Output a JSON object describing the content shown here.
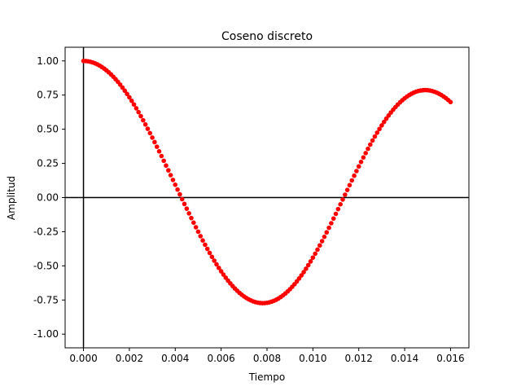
{
  "chart_data": {
    "type": "scatter",
    "title": "Coseno discreto",
    "xlabel": "Tiempo",
    "ylabel": "Amplitud",
    "xlim": [
      -0.0008,
      0.0168
    ],
    "ylim": [
      -1.1,
      1.1
    ],
    "xticks": [
      "0.000",
      "0.002",
      "0.004",
      "0.006",
      "0.008",
      "0.010",
      "0.012",
      "0.014",
      "0.016"
    ],
    "yticks": [
      "-1.00",
      "-0.75",
      "-0.50",
      "-0.25",
      "0.00",
      "0.25",
      "0.50",
      "0.75",
      "1.00"
    ],
    "grid": false,
    "marker_color": "#ff0000",
    "reference_lines": {
      "horizontal_y": 0,
      "vertical_x": 0,
      "color": "#000000"
    },
    "series": [
      {
        "x": [
          0.0,
          0.0001,
          0.0002,
          0.0003,
          0.0004,
          0.0005,
          0.0006,
          0.0007,
          0.0008,
          0.0009,
          0.001,
          0.0011,
          0.0012,
          0.0013,
          0.0014,
          0.0015,
          0.0016,
          0.0017,
          0.0018,
          0.0019,
          0.002,
          0.0021,
          0.0022,
          0.0023,
          0.0024,
          0.0025,
          0.0026,
          0.0027,
          0.0028,
          0.0029,
          0.003,
          0.0031,
          0.0032,
          0.0033,
          0.0034,
          0.0035,
          0.0036,
          0.0037,
          0.0038,
          0.0039,
          0.004,
          0.0041,
          0.0042,
          0.0043,
          0.0044,
          0.0045,
          0.0046,
          0.0047,
          0.0048,
          0.0049,
          0.005,
          0.0051,
          0.0052,
          0.0053,
          0.0054,
          0.0055,
          0.0056,
          0.0057,
          0.0058,
          0.0059,
          0.006,
          0.0061,
          0.0062,
          0.0063,
          0.0064,
          0.0065,
          0.0066,
          0.0067,
          0.0068,
          0.0069,
          0.007,
          0.0071,
          0.0072,
          0.0073,
          0.0074,
          0.0075,
          0.0076,
          0.0077,
          0.0078,
          0.0079,
          0.008,
          0.0081,
          0.0082,
          0.0083,
          0.0084,
          0.0085,
          0.0086,
          0.0087,
          0.0088,
          0.0089,
          0.009,
          0.0091,
          0.0092,
          0.0093,
          0.0094,
          0.0095,
          0.0096,
          0.0097,
          0.0098,
          0.0099,
          0.01,
          0.0101,
          0.0102,
          0.0103,
          0.0104,
          0.0105,
          0.0106,
          0.0107,
          0.0108,
          0.0109,
          0.011,
          0.0111,
          0.0112,
          0.0113,
          0.0114,
          0.0115,
          0.0116,
          0.0117,
          0.0118,
          0.0119,
          0.012,
          0.0121,
          0.0122,
          0.0123,
          0.0124,
          0.0125,
          0.0126,
          0.0127,
          0.0128,
          0.0129,
          0.013,
          0.0131,
          0.0132,
          0.0133,
          0.0134,
          0.0135,
          0.0136,
          0.0137,
          0.0138,
          0.0139,
          0.014,
          0.0141,
          0.0142,
          0.0143,
          0.0144,
          0.0145,
          0.0146,
          0.0147,
          0.0148,
          0.0149,
          0.015,
          0.0151,
          0.0152,
          0.0153,
          0.0154,
          0.0155,
          0.0156,
          0.0157,
          0.0158,
          0.0159,
          0.016
        ],
        "y": [
          1.0,
          0.9993,
          0.9972,
          0.9937,
          0.9888,
          0.9826,
          0.9749,
          0.966,
          0.9556,
          0.944,
          0.931,
          0.9167,
          0.9011,
          0.8843,
          0.8662,
          0.8469,
          0.8265,
          0.8049,
          0.7822,
          0.7584,
          0.7336,
          0.7078,
          0.6811,
          0.6535,
          0.625,
          0.5957,
          0.5656,
          0.5348,
          0.5033,
          0.4713,
          0.4386,
          0.4055,
          0.3719,
          0.3379,
          0.3036,
          0.269,
          0.2342,
          0.1991,
          0.164,
          0.1288,
          0.0935,
          0.0583,
          0.0232,
          -0.0118,
          -0.0467,
          -0.0814,
          -0.1159,
          -0.15,
          -0.1838,
          -0.2172,
          -0.2501,
          -0.2825,
          -0.3142,
          -0.3453,
          -0.3757,
          -0.4053,
          -0.4341,
          -0.462,
          -0.4889,
          -0.5149,
          -0.5399,
          -0.5637,
          -0.5865,
          -0.6081,
          -0.6285,
          -0.6477,
          -0.6656,
          -0.6822,
          -0.6975,
          -0.7114,
          -0.724,
          -0.7351,
          -0.7449,
          -0.7532,
          -0.7601,
          -0.7655,
          -0.7695,
          -0.772,
          -0.773,
          -0.7725,
          -0.7706,
          -0.7671,
          -0.7622,
          -0.7558,
          -0.748,
          -0.7387,
          -0.7279,
          -0.7157,
          -0.7021,
          -0.6871,
          -0.6708,
          -0.6531,
          -0.6341,
          -0.6139,
          -0.5924,
          -0.5697,
          -0.5459,
          -0.5209,
          -0.4949,
          -0.4679,
          -0.4399,
          -0.411,
          -0.3812,
          -0.3506,
          -0.3193,
          -0.2873,
          -0.2547,
          -0.2215,
          -0.1878,
          -0.1537,
          -0.1193,
          -0.0845,
          -0.0496,
          -0.0145,
          0.0206,
          0.0556,
          0.0905,
          0.1252,
          0.1596,
          0.1937,
          0.2274,
          0.2606,
          0.2932,
          0.3253,
          0.3567,
          0.3874,
          0.4173,
          0.4464,
          0.4746,
          0.5018,
          0.5281,
          0.5533,
          0.5774,
          0.6004,
          0.6222,
          0.6428,
          0.6621,
          0.6802,
          0.6969,
          0.7123,
          0.7263,
          0.7389,
          0.75,
          0.7597,
          0.7679,
          0.7746,
          0.7798,
          0.7835,
          0.7857,
          0.7864,
          0.7856,
          0.7833,
          0.7795,
          0.7743,
          0.7676,
          0.7595,
          0.75,
          0.7392,
          0.727,
          0.7135,
          0.6987
        ]
      }
    ]
  }
}
